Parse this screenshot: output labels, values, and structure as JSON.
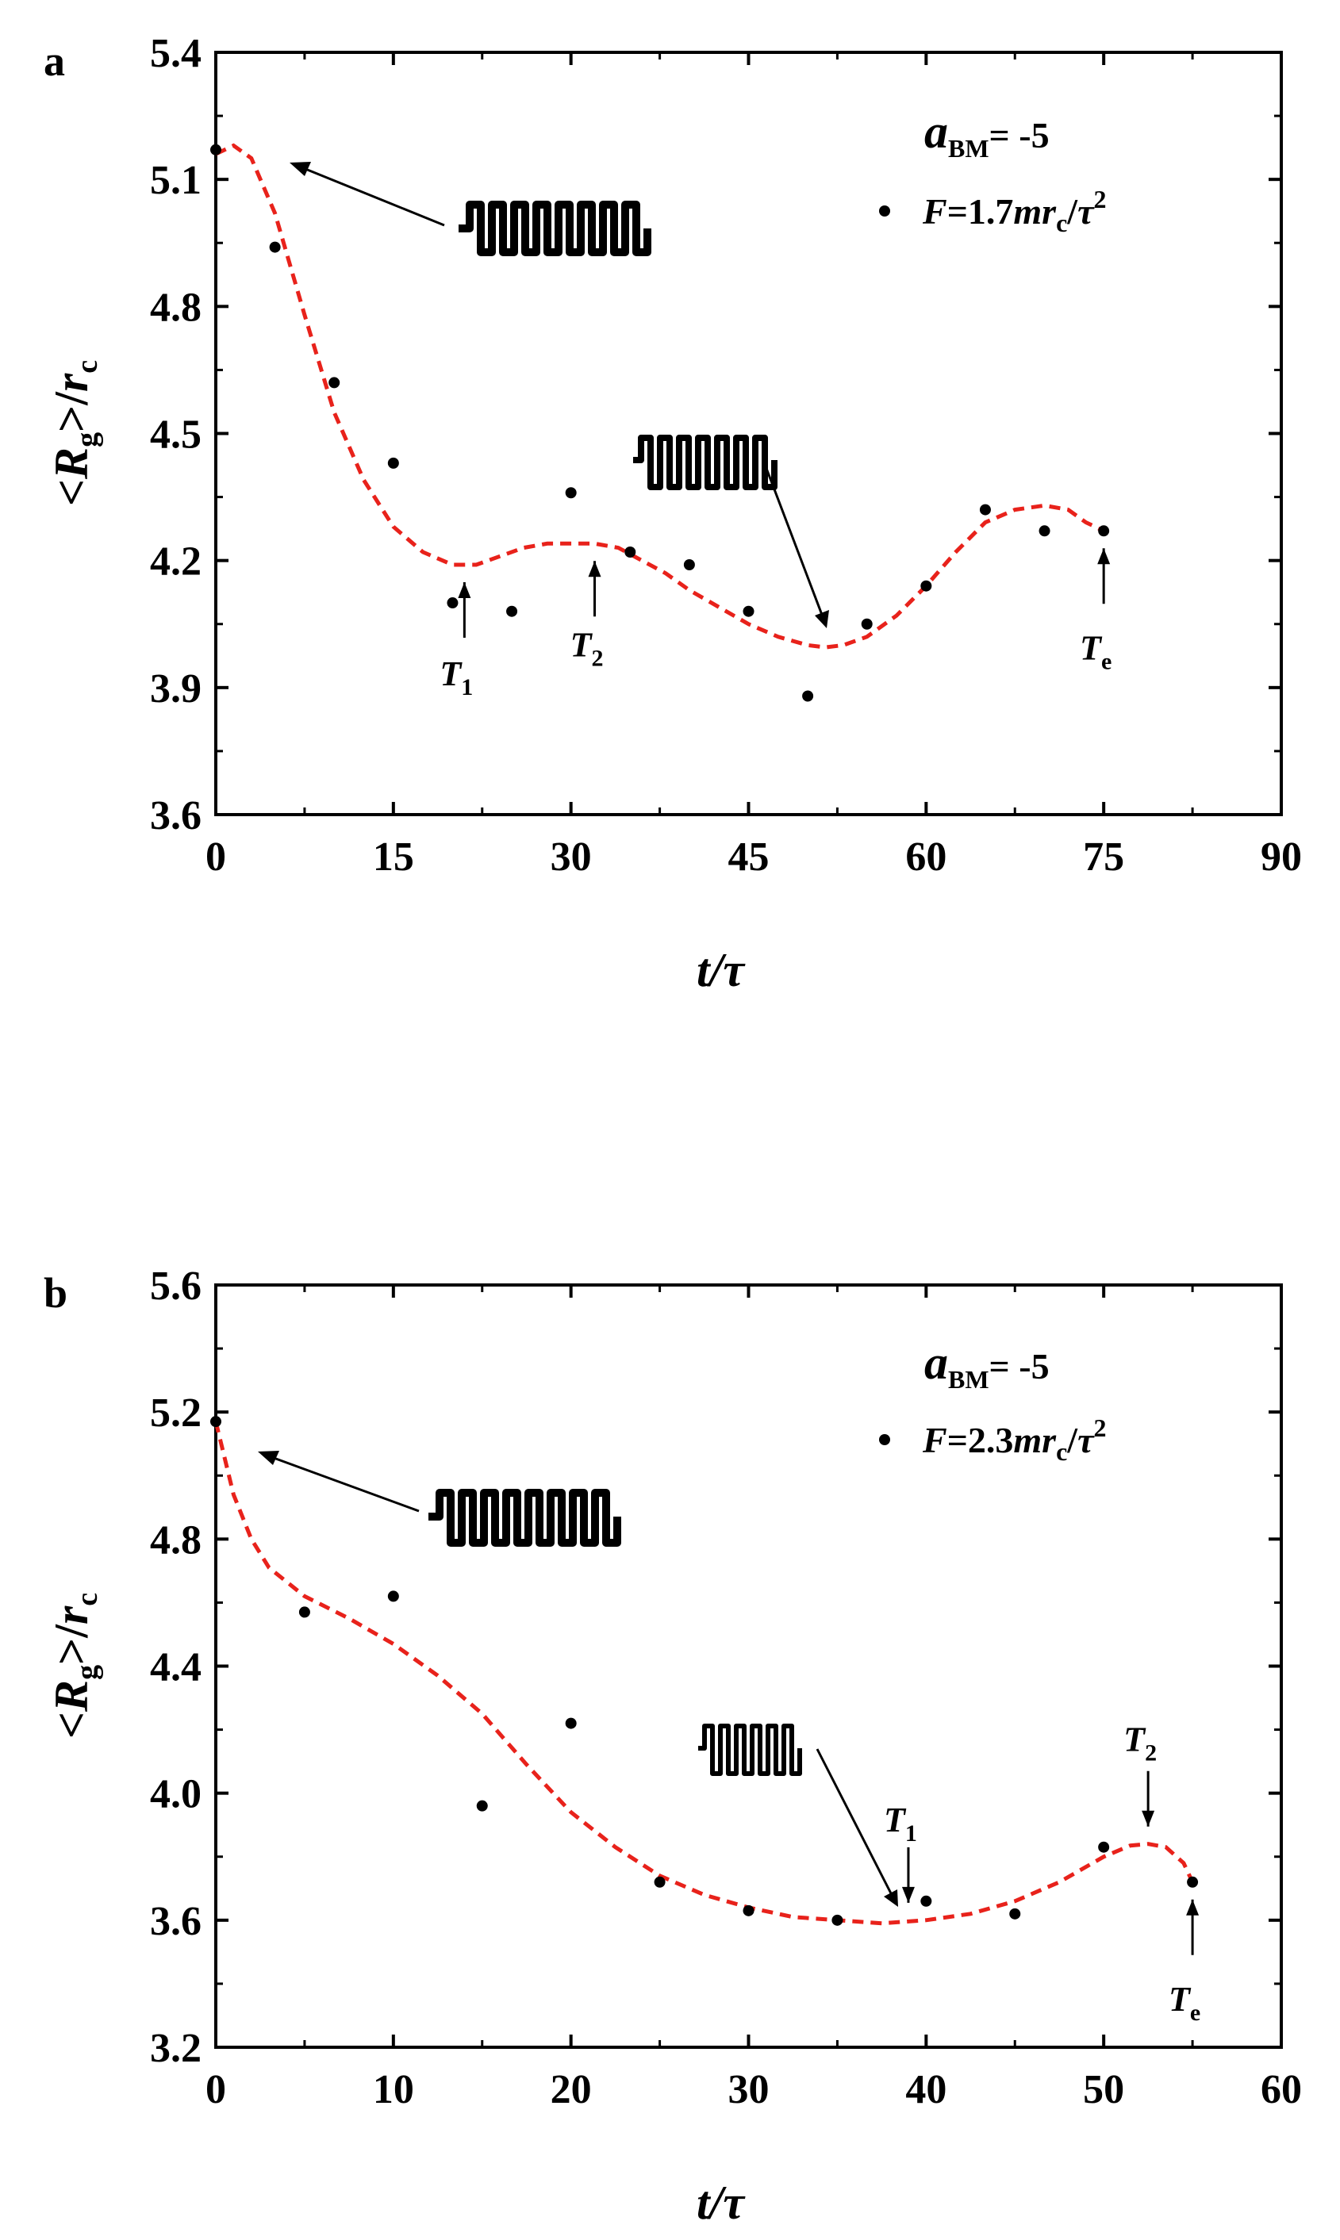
{
  "chart_data": [
    {
      "panel": "a",
      "type": "scatter",
      "xlabel": {
        "main": "t/τ"
      },
      "ylabel": {
        "open": "<",
        "var": "R",
        "sub": "g",
        "mid": ">/",
        "var2": "r",
        "sub2": "c"
      },
      "xlim": [
        0,
        90
      ],
      "ylim": [
        3.6,
        5.4
      ],
      "xticks": [
        0,
        15,
        30,
        45,
        60,
        75,
        90
      ],
      "yticks": [
        3.6,
        3.9,
        4.2,
        4.5,
        4.8,
        5.1,
        5.4
      ],
      "ytick_labels": [
        "3.6",
        "3.9",
        "4.2",
        "4.5",
        "4.8",
        "5.1",
        "5.4"
      ],
      "legend": {
        "param": {
          "var": "a",
          "sub": "BM",
          "rest": "= -5"
        },
        "series": {
          "prefix": "F",
          "mid": "=1.7",
          "mr": "mr",
          "sub": "c",
          "slash": "/",
          "tau": "τ",
          "sup": "2"
        }
      },
      "series": [
        {
          "name": "F=1.7mr_c/τ^2",
          "style": "points",
          "x": [
            0,
            5,
            10,
            15,
            20,
            25,
            30,
            35,
            40,
            45,
            50,
            55,
            60,
            65,
            70,
            75
          ],
          "y": [
            5.17,
            4.94,
            4.62,
            4.43,
            4.1,
            4.08,
            4.36,
            4.22,
            4.19,
            4.08,
            3.88,
            4.05,
            4.14,
            4.32,
            4.27,
            4.27
          ]
        },
        {
          "name": "fit",
          "style": "dashed",
          "color": "#e8221b",
          "x": [
            0,
            1.5,
            3,
            5,
            7.5,
            10,
            12.5,
            15,
            17.5,
            20,
            22,
            24,
            26,
            28,
            30,
            32,
            34,
            36,
            38,
            40,
            42.5,
            45,
            47.5,
            50,
            51.5,
            53,
            55,
            57.5,
            60,
            62.5,
            65,
            67.5,
            70,
            72,
            73.5,
            75
          ],
          "y": [
            5.16,
            5.18,
            5.15,
            5.02,
            4.78,
            4.55,
            4.39,
            4.28,
            4.22,
            4.19,
            4.19,
            4.21,
            4.23,
            4.24,
            4.24,
            4.24,
            4.23,
            4.2,
            4.17,
            4.13,
            4.09,
            4.05,
            4.02,
            4.0,
            3.995,
            4.0,
            4.02,
            4.07,
            4.14,
            4.22,
            4.29,
            4.32,
            4.33,
            4.32,
            4.29,
            4.27
          ]
        }
      ],
      "annotations": [
        {
          "label": "T",
          "sub": "1",
          "x": 21,
          "y": 4.19
        },
        {
          "label": "T",
          "sub": "2",
          "x": 32,
          "y": 4.24
        },
        {
          "label": "T",
          "sub": "e",
          "x": 75,
          "y": 4.27
        }
      ],
      "insets": [
        {
          "kind": "coil-long",
          "points_to": [
            1.5,
            5.18
          ]
        },
        {
          "kind": "coil-short",
          "points_to": [
            51.5,
            3.995
          ]
        }
      ]
    },
    {
      "panel": "b",
      "type": "scatter",
      "xlabel": {
        "main": "t/τ"
      },
      "ylabel": {
        "open": "<",
        "var": "R",
        "sub": "g",
        "mid": ">/",
        "var2": "r",
        "sub2": "c"
      },
      "xlim": [
        0,
        60
      ],
      "ylim": [
        3.2,
        5.6
      ],
      "xticks": [
        0,
        10,
        20,
        30,
        40,
        50,
        60
      ],
      "yticks": [
        3.2,
        3.6,
        4.0,
        4.4,
        4.8,
        5.2,
        5.6
      ],
      "ytick_labels": [
        "3.2",
        "3.6",
        "4.0",
        "4.4",
        "4.8",
        "5.2",
        "5.6"
      ],
      "legend": {
        "param": {
          "var": "a",
          "sub": "BM",
          "rest": "= -5"
        },
        "series": {
          "prefix": "F",
          "mid": "=2.3",
          "mr": "mr",
          "sub": "c",
          "slash": "/",
          "tau": "τ",
          "sup": "2"
        }
      },
      "series": [
        {
          "name": "F=2.3mr_c/τ^2",
          "style": "points",
          "x": [
            0,
            5,
            10,
            15,
            20,
            25,
            30,
            35,
            40,
            45,
            50,
            55
          ],
          "y": [
            5.17,
            4.57,
            4.62,
            3.96,
            4.22,
            3.72,
            3.63,
            3.6,
            3.66,
            3.62,
            3.83,
            3.72
          ]
        },
        {
          "name": "fit",
          "style": "dashed",
          "color": "#e8221b",
          "x": [
            0,
            1,
            2,
            3,
            5,
            7.5,
            10,
            12.5,
            15,
            17.5,
            20,
            22.5,
            25,
            27.5,
            30,
            32.5,
            35,
            37.5,
            40,
            42.5,
            45,
            47.5,
            50,
            51.5,
            52.5,
            53.5,
            54.5,
            55
          ],
          "y": [
            5.17,
            4.94,
            4.8,
            4.71,
            4.62,
            4.55,
            4.47,
            4.37,
            4.25,
            4.09,
            3.94,
            3.83,
            3.74,
            3.68,
            3.64,
            3.61,
            3.6,
            3.59,
            3.6,
            3.62,
            3.66,
            3.72,
            3.8,
            3.835,
            3.84,
            3.83,
            3.78,
            3.72
          ]
        }
      ],
      "annotations": [
        {
          "label": "T",
          "sub": "1",
          "x": 39,
          "y": 3.6
        },
        {
          "label": "T",
          "sub": "2",
          "x": 52.5,
          "y": 3.84
        },
        {
          "label": "T",
          "sub": "e",
          "x": 55,
          "y": 3.72
        }
      ],
      "insets": [
        {
          "kind": "coil-long",
          "points_to": [
            1.8,
            5.08
          ]
        },
        {
          "kind": "coil-short",
          "points_to": [
            38,
            3.6
          ]
        }
      ]
    }
  ]
}
